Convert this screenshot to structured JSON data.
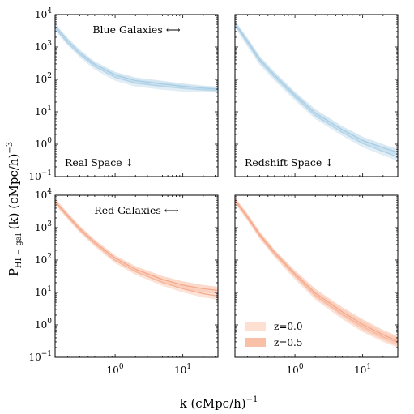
{
  "chart_data": {
    "type": "line",
    "xlabel": "k (cMpc/h)⁻¹",
    "ylabel": "Pₕᵢ₋ᵧₐₗ (k) (cMpc/h)⁻³",
    "ylabel_main": "P",
    "ylabel_sub": "HI − gal",
    "ylabel_rest": " (k) (cMpc/h)",
    "ylabel_sup": "−3",
    "xlabel_main": "k (cMpc/h)",
    "xlabel_sup": "−1",
    "xscale": "log",
    "yscale": "log",
    "xlim": [
      0.13,
      33
    ],
    "ylim": [
      0.1,
      10000
    ],
    "x_tick_labels": [
      {
        "value": 1,
        "base": "10",
        "exp": "0"
      },
      {
        "value": 10,
        "base": "10",
        "exp": "1"
      }
    ],
    "y_tick_labels": [
      {
        "value": 0.1,
        "base": "10",
        "exp": "−1"
      },
      {
        "value": 1,
        "base": "10",
        "exp": "0"
      },
      {
        "value": 10,
        "base": "10",
        "exp": "1"
      },
      {
        "value": 100,
        "base": "10",
        "exp": "2"
      },
      {
        "value": 1000,
        "base": "10",
        "exp": "3"
      },
      {
        "value": 10000,
        "base": "10",
        "exp": "4"
      }
    ],
    "legend": {
      "placement": "lower-left of bottom-right panel",
      "entries": [
        {
          "label": "z=0.0",
          "color": "#fde0d2"
        },
        {
          "label": "z=0.5",
          "color": "#f9c0a8"
        }
      ]
    },
    "panels": [
      {
        "id": "blue-real",
        "title": "Blue Galaxies ⟷",
        "annotation": "Real Space ↕",
        "color": "#bcd9eb",
        "line_color": "#a8cde4",
        "series": [
          {
            "name": "z=0.0",
            "x": [
              0.13,
              0.2,
              0.3,
              0.5,
              1,
              2,
              5,
              10,
              20,
              33
            ],
            "lower": [
              3200,
              1100,
              480,
              200,
              90,
              60,
              48,
              42,
              40,
              40
            ],
            "upper": [
              4600,
              1600,
              720,
              320,
              150,
              100,
              80,
              68,
              58,
              55
            ]
          },
          {
            "name": "z=0.5",
            "x": [
              0.13,
              0.2,
              0.3,
              0.5,
              1,
              2,
              5,
              10,
              20,
              33
            ],
            "lower": [
              3800,
              1300,
              560,
              240,
              110,
              72,
              58,
              50,
              45,
              42
            ],
            "upper": [
              5200,
              1900,
              820,
              360,
              170,
              115,
              90,
              75,
              64,
              60
            ]
          }
        ]
      },
      {
        "id": "blue-redshift",
        "title": "",
        "annotation": "Redshift Space ↕",
        "color": "#bcd9eb",
        "line_color": "#a8cde4",
        "series": [
          {
            "name": "z=0.0",
            "x": [
              0.13,
              0.2,
              0.3,
              0.5,
              1,
              2,
              5,
              10,
              20,
              33
            ],
            "lower": [
              4000,
              1000,
              280,
              90,
              22,
              6,
              1.8,
              0.8,
              0.45,
              0.3
            ],
            "upper": [
              6000,
              1700,
              480,
              150,
              38,
              10,
              3.0,
              1.4,
              0.8,
              0.55
            ]
          },
          {
            "name": "z=0.5",
            "x": [
              0.13,
              0.2,
              0.3,
              0.5,
              1,
              2,
              5,
              10,
              20,
              33
            ],
            "lower": [
              4500,
              1200,
              330,
              110,
              26,
              7,
              2.2,
              1.0,
              0.6,
              0.45
            ],
            "upper": [
              6500,
              1900,
              540,
              170,
              42,
              12,
              3.6,
              1.7,
              1.0,
              0.7
            ]
          }
        ]
      },
      {
        "id": "red-real",
        "title": "Red Galaxies ⟷",
        "annotation": "",
        "color": "#f9c0a8",
        "line_color": "#f4a98b",
        "series": [
          {
            "name": "z=0.0",
            "x": [
              0.13,
              0.2,
              0.3,
              0.5,
              1,
              2,
              5,
              10,
              20,
              33
            ],
            "lower": [
              5000,
              1800,
              700,
              260,
              80,
              35,
              16,
              10,
              7,
              6
            ],
            "upper": [
              7000,
              2600,
              1000,
              380,
              120,
              55,
              26,
              17,
              12,
              10
            ]
          },
          {
            "name": "z=0.5",
            "x": [
              0.13,
              0.2,
              0.3,
              0.5,
              1,
              2,
              5,
              10,
              20,
              33
            ],
            "lower": [
              5500,
              2000,
              780,
              300,
              95,
              42,
              20,
              13,
              10,
              9
            ],
            "upper": [
              7800,
              2900,
              1150,
              430,
              140,
              65,
              32,
              22,
              17,
              15
            ]
          }
        ]
      },
      {
        "id": "red-redshift",
        "title": "",
        "annotation": "",
        "color": "#f9c0a8",
        "line_color": "#f4a98b",
        "series": [
          {
            "name": "z=0.0",
            "x": [
              0.13,
              0.2,
              0.3,
              0.5,
              1,
              2,
              5,
              10,
              20,
              33
            ],
            "lower": [
              5500,
              1600,
              450,
              120,
              25,
              6,
              1.5,
              0.6,
              0.3,
              0.2
            ],
            "upper": [
              8000,
              2400,
              700,
              190,
              42,
              11,
              3.0,
              1.3,
              0.6,
              0.4
            ]
          },
          {
            "name": "z=0.5",
            "x": [
              0.13,
              0.2,
              0.3,
              0.5,
              1,
              2,
              5,
              10,
              20,
              33
            ],
            "lower": [
              6000,
              1800,
              500,
              140,
              30,
              7,
              1.8,
              0.7,
              0.35,
              0.22
            ],
            "upper": [
              8800,
              2700,
              780,
              210,
              48,
              13,
              3.5,
              1.5,
              0.7,
              0.45
            ]
          }
        ]
      }
    ]
  }
}
